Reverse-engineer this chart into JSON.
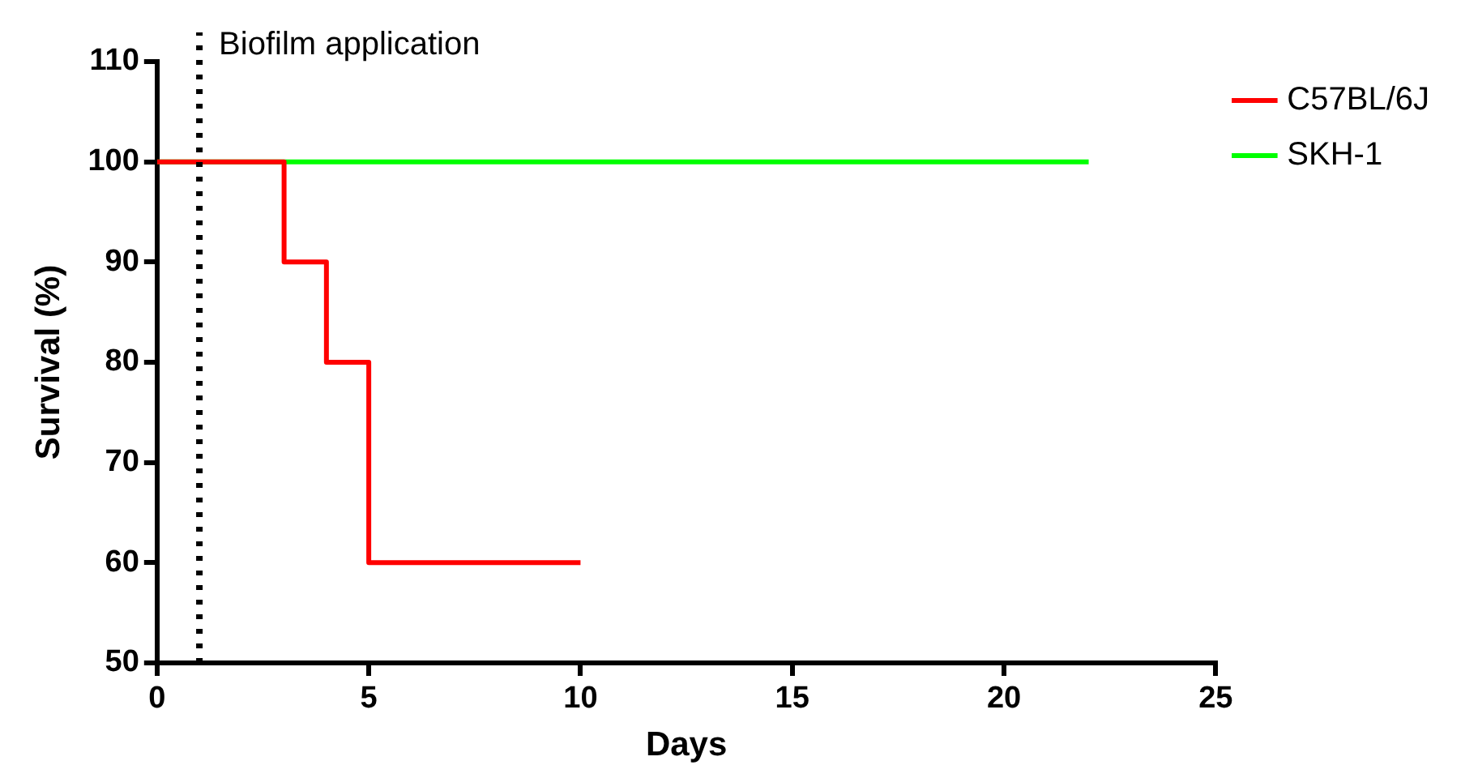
{
  "chart_data": {
    "type": "step",
    "xlabel": "Days",
    "ylabel": "Survival (%)",
    "series": [
      {
        "name": "C57BL/6J",
        "color": "#ff0000",
        "x": [
          0,
          3,
          4,
          5,
          10
        ],
        "values": [
          100,
          90,
          80,
          60,
          60
        ]
      },
      {
        "name": "SKH-1",
        "color": "#00ff00",
        "x": [
          0,
          22
        ],
        "values": [
          100,
          100
        ]
      }
    ],
    "xlim": [
      0,
      25
    ],
    "xticks": [
      0,
      5,
      10,
      15,
      20,
      25
    ],
    "ylim": [
      50,
      110
    ],
    "yticks": [
      50,
      60,
      70,
      80,
      90,
      100,
      110
    ],
    "ref_lines": [
      {
        "axis": "x",
        "value": 1,
        "label": "Biofilm application",
        "line_style": "dotted",
        "color": "#000000"
      }
    ],
    "grid": false,
    "legend": "top right"
  }
}
